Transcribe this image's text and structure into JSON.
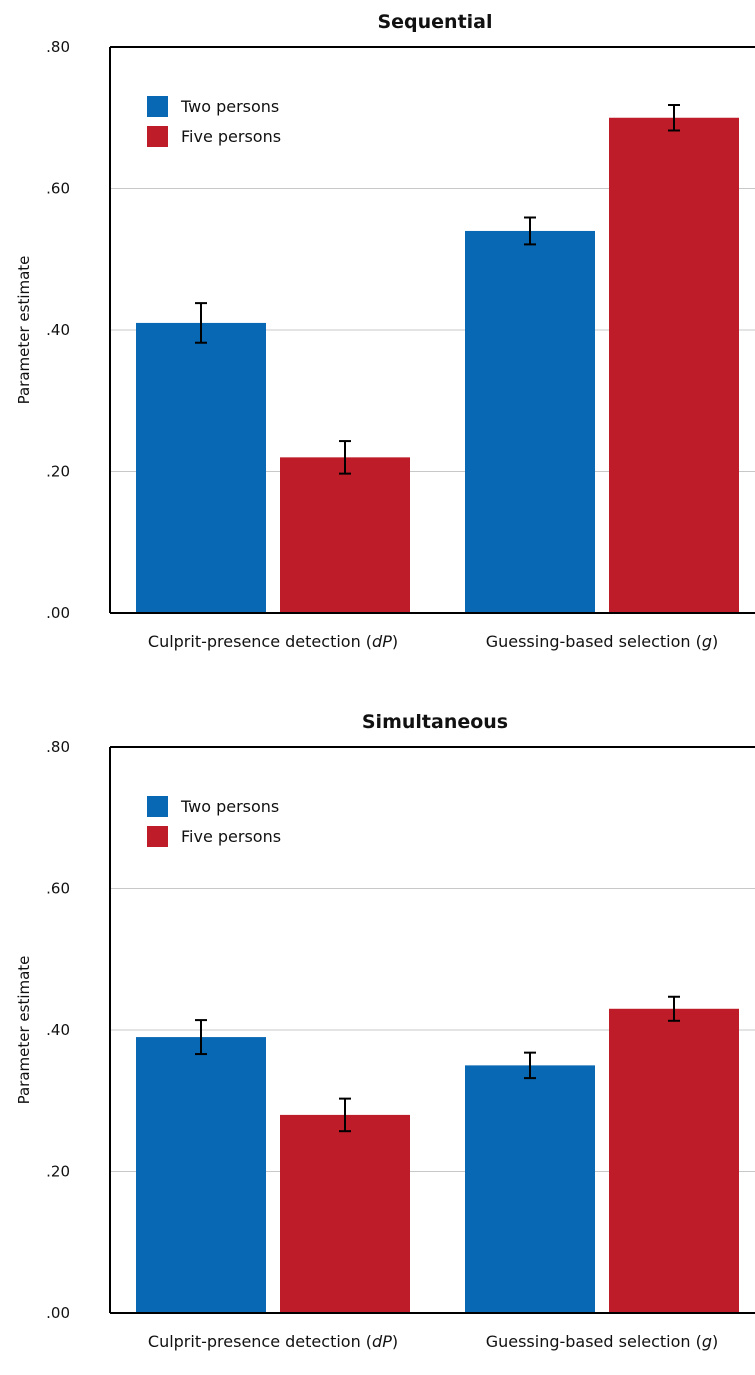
{
  "colors": {
    "two": "#0868b3",
    "five": "#bd1c28",
    "grid": "#c8c8c8",
    "axis": "#000000"
  },
  "chart_data": [
    {
      "type": "bar",
      "title": "Sequential",
      "ylabel": "Parameter estimate",
      "ylim": [
        0,
        0.8
      ],
      "yticks": [
        ".00",
        ".20",
        ".40",
        ".60",
        ".80"
      ],
      "ytick_values": [
        0,
        0.2,
        0.4,
        0.6,
        0.8
      ],
      "grid": true,
      "legend_position": "top-left",
      "category_labels": [
        {
          "pre": "Culprit-presence detection (",
          "italic": "dP",
          "post": ")"
        },
        {
          "pre": "Guessing-based selection (",
          "italic": "g",
          "post": ")"
        }
      ],
      "series": [
        {
          "name": "Two persons",
          "color_key": "two",
          "values": [
            0.41,
            0.54
          ],
          "errors": [
            0.028,
            0.019
          ]
        },
        {
          "name": "Five persons",
          "color_key": "five",
          "values": [
            0.22,
            0.7
          ],
          "errors": [
            0.023,
            0.018
          ]
        }
      ]
    },
    {
      "type": "bar",
      "title": "Simultaneous",
      "ylabel": "Parameter estimate",
      "ylim": [
        0,
        0.8
      ],
      "yticks": [
        ".00",
        ".20",
        ".40",
        ".60",
        ".80"
      ],
      "ytick_values": [
        0,
        0.2,
        0.4,
        0.6,
        0.8
      ],
      "grid": true,
      "legend_position": "top-left",
      "category_labels": [
        {
          "pre": "Culprit-presence detection (",
          "italic": "dP",
          "post": ")"
        },
        {
          "pre": "Guessing-based selection (",
          "italic": "g",
          "post": ")"
        }
      ],
      "series": [
        {
          "name": "Two persons",
          "color_key": "two",
          "values": [
            0.39,
            0.35
          ],
          "errors": [
            0.024,
            0.018
          ]
        },
        {
          "name": "Five persons",
          "color_key": "five",
          "values": [
            0.28,
            0.43
          ],
          "errors": [
            0.023,
            0.017
          ]
        }
      ]
    }
  ]
}
